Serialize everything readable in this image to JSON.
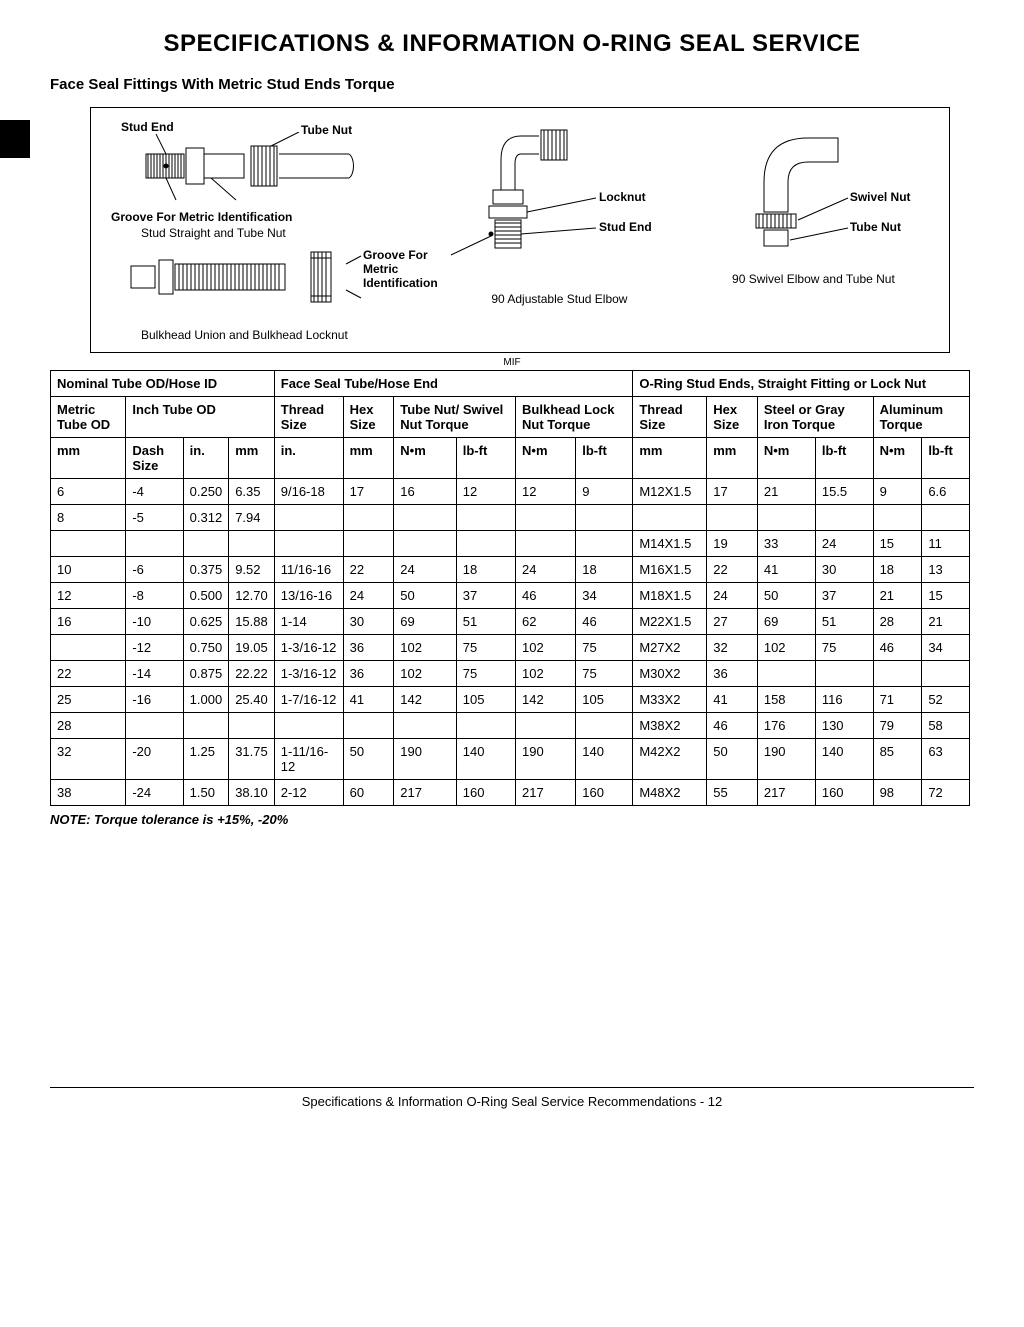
{
  "page_title": "SPECIFICATIONS & INFORMATION   O-RING SEAL SERVICE",
  "section_title": "Face Seal Fittings With Metric Stud Ends Torque",
  "diagram": {
    "labels": {
      "stud_end": "Stud End",
      "tube_nut": "Tube Nut",
      "groove": "Groove For Metric Identification",
      "stud_straight_caption": "Stud Straight and Tube Nut",
      "groove2": "Groove For Metric Identification",
      "bulkhead_caption": "Bulkhead Union and Bulkhead Locknut",
      "locknut": "Locknut",
      "stud_end2": "Stud End",
      "adj_stud_caption": "90 Adjustable Stud Elbow",
      "swivel_nut": "Swivel Nut",
      "tube_nut2": "Tube Nut",
      "swivel_caption": "90 Swivel Elbow and Tube Nut"
    },
    "mif": "MIF"
  },
  "table": {
    "group_headers": {
      "nominal": "Nominal Tube OD/Hose ID",
      "face_seal": "Face Seal Tube/Hose End",
      "oring": "O-Ring Stud Ends, Straight Fitting or Lock Nut"
    },
    "sub_headers": {
      "metric_tube_od": "Metric Tube OD",
      "inch_tube_od": "Inch Tube OD",
      "thread_size_fs": "Thread Size",
      "hex_size_fs": "Hex Size",
      "tube_swivel_torque": "Tube Nut/ Swivel Nut Torque",
      "bulkhead_torque": "Bulkhead Lock Nut Torque",
      "thread_size_or": "Thread Size",
      "hex_size_or": "Hex Size",
      "steel_gray_torque": "Steel or Gray Iron Torque",
      "alum_torque": "Aluminum Torque"
    },
    "unit_headers": {
      "mm": "mm",
      "dash_size": "Dash Size",
      "in": "in.",
      "mm2": "mm",
      "in2": "in.",
      "mm3": "mm",
      "nm1": "N•m",
      "lbft1": "lb-ft",
      "nm2": "N•m",
      "lbft2": "lb-ft",
      "mm4": "mm",
      "mm5": "mm",
      "nm3": "N•m",
      "lbft3": "lb-ft",
      "nm4": "N•m",
      "lbft4": "lb-ft"
    },
    "rows": [
      {
        "c": [
          "6",
          "-4",
          "0.250",
          "6.35",
          "9/16-18",
          "17",
          "16",
          "12",
          "12",
          "9",
          "M12X1.5",
          "17",
          "21",
          "15.5",
          "9",
          "6.6"
        ]
      },
      {
        "c": [
          "8",
          "-5",
          "0.312",
          "7.94",
          "",
          "",
          "",
          "",
          "",
          "",
          "",
          "",
          "",
          "",
          "",
          ""
        ]
      },
      {
        "c": [
          "",
          "",
          "",
          "",
          "",
          "",
          "",
          "",
          "",
          "",
          "M14X1.5",
          "19",
          "33",
          "24",
          "15",
          "11"
        ]
      },
      {
        "c": [
          "10",
          "-6",
          "0.375",
          "9.52",
          "11/16-16",
          "22",
          "24",
          "18",
          "24",
          "18",
          "M16X1.5",
          "22",
          "41",
          "30",
          "18",
          "13"
        ]
      },
      {
        "c": [
          "12",
          "-8",
          "0.500",
          "12.70",
          "13/16-16",
          "24",
          "50",
          "37",
          "46",
          "34",
          "M18X1.5",
          "24",
          "50",
          "37",
          "21",
          "15"
        ]
      },
      {
        "c": [
          "16",
          "-10",
          "0.625",
          "15.88",
          "1-14",
          "30",
          "69",
          "51",
          "62",
          "46",
          "M22X1.5",
          "27",
          "69",
          "51",
          "28",
          "21"
        ]
      },
      {
        "c": [
          "",
          "-12",
          "0.750",
          "19.05",
          "1-3/16-12",
          "36",
          "102",
          "75",
          "102",
          "75",
          "M27X2",
          "32",
          "102",
          "75",
          "46",
          "34"
        ]
      },
      {
        "c": [
          "22",
          "-14",
          "0.875",
          "22.22",
          "1-3/16-12",
          "36",
          "102",
          "75",
          "102",
          "75",
          "M30X2",
          "36",
          "",
          "",
          "",
          ""
        ]
      },
      {
        "c": [
          "25",
          "-16",
          "1.000",
          "25.40",
          "1-7/16-12",
          "41",
          "142",
          "105",
          "142",
          "105",
          "M33X2",
          "41",
          "158",
          "116",
          "71",
          "52"
        ]
      },
      {
        "c": [
          "28",
          "",
          "",
          "",
          "",
          "",
          "",
          "",
          "",
          "",
          "M38X2",
          "46",
          "176",
          "130",
          "79",
          "58"
        ]
      },
      {
        "c": [
          "32",
          "-20",
          "1.25",
          "31.75",
          "1-11/16-12",
          "50",
          "190",
          "140",
          "190",
          "140",
          "M42X2",
          "50",
          "190",
          "140",
          "85",
          "63"
        ]
      },
      {
        "c": [
          "38",
          "-24",
          "1.50",
          "38.10",
          "2-12",
          "60",
          "217",
          "160",
          "217",
          "160",
          "M48X2",
          "55",
          "217",
          "160",
          "98",
          "72"
        ]
      }
    ]
  },
  "note": "NOTE: Torque tolerance is +15%, -20%",
  "footer": "Specifications & Information   O-Ring Seal Service Recommendations  - 12",
  "colors": {
    "border": "#000000",
    "text": "#000000",
    "bg": "#ffffff"
  }
}
